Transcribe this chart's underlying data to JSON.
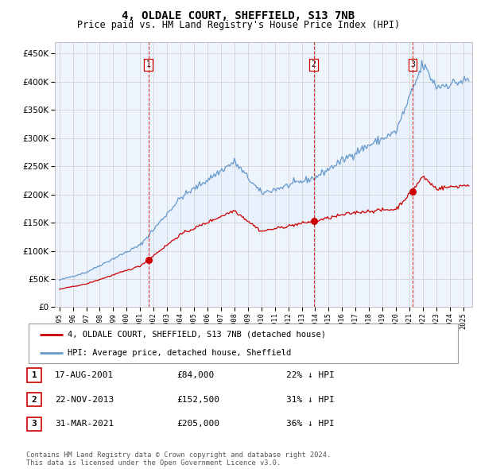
{
  "title": "4, OLDALE COURT, SHEFFIELD, S13 7NB",
  "subtitle": "Price paid vs. HM Land Registry's House Price Index (HPI)",
  "ytick_values": [
    0,
    50000,
    100000,
    150000,
    200000,
    250000,
    300000,
    350000,
    400000,
    450000
  ],
  "ylim": [
    0,
    470000
  ],
  "sale_labels": [
    "1",
    "2",
    "3"
  ],
  "sale_info": [
    {
      "label": "1",
      "date": "17-AUG-2001",
      "price": "£84,000",
      "hpi": "22% ↓ HPI"
    },
    {
      "label": "2",
      "date": "22-NOV-2013",
      "price": "£152,500",
      "hpi": "31% ↓ HPI"
    },
    {
      "label": "3",
      "date": "31-MAR-2021",
      "price": "£205,000",
      "hpi": "36% ↓ HPI"
    }
  ],
  "legend_entries": [
    "4, OLDALE COURT, SHEFFIELD, S13 7NB (detached house)",
    "HPI: Average price, detached house, Sheffield"
  ],
  "red_color": "#cc0000",
  "blue_color": "#6699cc",
  "blue_fill": "#ddeeff",
  "vline_color": "#cc0000",
  "footer": "Contains HM Land Registry data © Crown copyright and database right 2024.\nThis data is licensed under the Open Government Licence v3.0.",
  "title_fontsize": 10,
  "subtitle_fontsize": 8.5,
  "background_color": "#ffffff",
  "grid_color": "#cccccc",
  "chart_bg": "#eef4fb"
}
